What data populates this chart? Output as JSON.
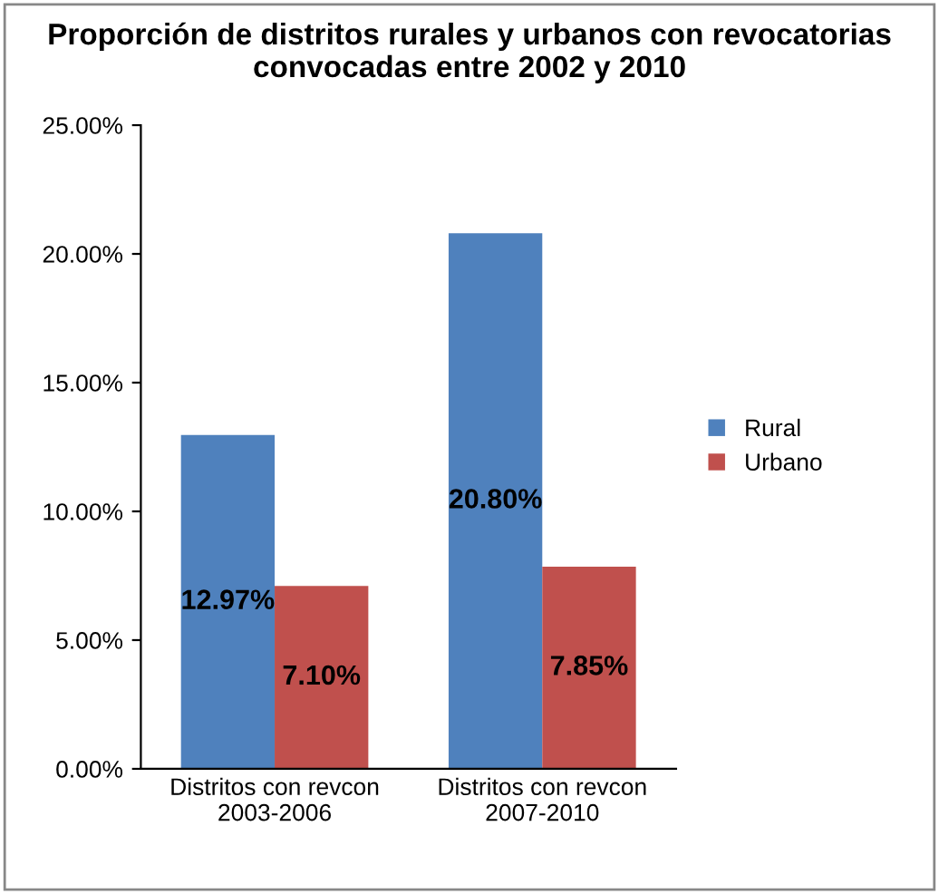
{
  "chart_data": {
    "type": "bar",
    "title": "Proporción de distritos rurales y urbanos con revocatorias convocadas entre 2002 y 2010",
    "categories": [
      "Distritos con revcon\n2003-2006",
      "Distritos con revcon\n2007-2010"
    ],
    "series": [
      {
        "name": "Rural",
        "color": "#4f81bd",
        "values": [
          12.97,
          20.8
        ],
        "value_labels": [
          "12.97%",
          "20.80%"
        ]
      },
      {
        "name": "Urbano",
        "color": "#c0504d",
        "values": [
          7.1,
          7.85
        ],
        "value_labels": [
          "7.10%",
          "7.85%"
        ]
      }
    ],
    "ylim": [
      0,
      25
    ],
    "yticks": [
      {
        "value": 0,
        "label": "0.00%"
      },
      {
        "value": 5,
        "label": "5.00%"
      },
      {
        "value": 10,
        "label": "10.00%"
      },
      {
        "value": 15,
        "label": "15.00%"
      },
      {
        "value": 20,
        "label": "20.00%"
      },
      {
        "value": 25,
        "label": "25.00%"
      }
    ],
    "grid": false,
    "legend": "right"
  }
}
